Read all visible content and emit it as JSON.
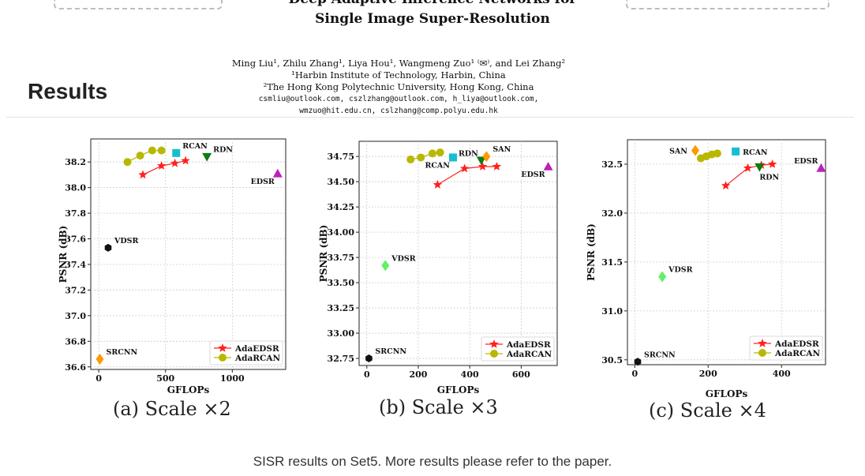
{
  "header": {
    "title_line1": "Deep Adaptive Inference Networks for",
    "title_line2": "Single Image Super-Resolution",
    "authors": "Ming Liu¹, Zhilu Zhang¹, Liya Hou¹, Wangmeng Zuo¹ ⁽✉⁾, and Lei Zhang²",
    "affiliation1": "¹Harbin Institute of Technology, Harbin, China",
    "affiliation2": "²The Hong Kong Polytechnic University, Hong Kong, China",
    "emails_line1": "csmliu@outlook.com, cszlzhang@outlook.com, h_liya@outlook.com,",
    "emails_line2": "wmzuo@hit.edu.cn, cslzhang@comp.polyu.edu.hk"
  },
  "section": {
    "title": "Results"
  },
  "caption": "SISR results on Set5. More results please refer to the paper.",
  "colors": {
    "adaedsr": "#ff2020",
    "adarcan": "#b8b800",
    "rcan": "#17becf",
    "rdn": "#117a11",
    "edsr": "#bb22bb",
    "san": "#ff9900",
    "vdsr": "#66ee66",
    "srcnn_a": "#ff9900",
    "black": "#111111"
  },
  "chart_data": [
    {
      "type": "scatter",
      "caption": "(a) Scale ×2",
      "xlabel": "GFLOPs",
      "ylabel": "PSNR (dB)",
      "xlim": [
        -60,
        1400
      ],
      "ylim": [
        36.58,
        38.38
      ],
      "xticks": [
        0,
        500,
        1000
      ],
      "yticks": [
        36.6,
        36.8,
        37.0,
        37.2,
        37.4,
        37.6,
        37.8,
        38.0,
        38.2
      ],
      "ytick_decimals": 1,
      "legend": "bottom-right",
      "legend_entries": [
        "AdaEDSR",
        "AdaRCAN"
      ],
      "series": [
        {
          "name": "AdaEDSR",
          "style": "star-line",
          "color": "#ff2020",
          "x": [
            330,
            470,
            570,
            650
          ],
          "y": [
            38.1,
            38.17,
            38.19,
            38.21
          ]
        },
        {
          "name": "AdaRCAN",
          "style": "circle-line",
          "color": "#b8b800",
          "x": [
            215,
            310,
            400,
            470
          ],
          "y": [
            38.2,
            38.25,
            38.29,
            38.29
          ]
        }
      ],
      "points": [
        {
          "label": "RCAN",
          "x": 580,
          "y": 38.27,
          "marker": "square",
          "color": "#17becf",
          "label_pos": "above-right"
        },
        {
          "label": "RDN",
          "x": 810,
          "y": 38.24,
          "marker": "triangle-down",
          "color": "#117a11",
          "label_pos": "above-right"
        },
        {
          "label": "EDSR",
          "x": 1340,
          "y": 38.11,
          "marker": "triangle-up",
          "color": "#bb22bb",
          "label_pos": "below-left"
        },
        {
          "label": "VDSR",
          "x": 70,
          "y": 37.53,
          "marker": "hexagon",
          "color": "#111111",
          "label_pos": "above-right"
        },
        {
          "label": "SRCNN",
          "x": 8,
          "y": 36.66,
          "marker": "diamond",
          "color": "#ff9900",
          "label_pos": "above-right"
        }
      ]
    },
    {
      "type": "scatter",
      "caption": "(b) Scale ×3",
      "xlabel": "GFLOPs",
      "ylabel": "PSNR (dB)",
      "xlim": [
        -30,
        740
      ],
      "ylim": [
        32.68,
        34.9
      ],
      "xticks": [
        0,
        200,
        400,
        600
      ],
      "yticks": [
        32.75,
        33.0,
        33.25,
        33.5,
        33.75,
        34.0,
        34.25,
        34.5,
        34.75
      ],
      "ytick_decimals": 2,
      "legend": "bottom-right",
      "legend_entries": [
        "AdaEDSR",
        "AdaRCAN"
      ],
      "series": [
        {
          "name": "AdaEDSR",
          "style": "star-line",
          "color": "#ff2020",
          "x": [
            275,
            380,
            450,
            505
          ],
          "y": [
            34.47,
            34.63,
            34.65,
            34.65
          ]
        },
        {
          "name": "AdaRCAN",
          "style": "circle-line",
          "color": "#b8b800",
          "x": [
            170,
            210,
            255,
            285
          ],
          "y": [
            34.72,
            34.74,
            34.78,
            34.79
          ]
        }
      ],
      "points": [
        {
          "label": "RCAN",
          "x": 335,
          "y": 34.74,
          "marker": "square",
          "color": "#17becf",
          "label_pos": "below-left"
        },
        {
          "label": "RDN",
          "x": 445,
          "y": 34.71,
          "marker": "triangle-down",
          "color": "#117a11",
          "label_pos": "above-left"
        },
        {
          "label": "SAN",
          "x": 465,
          "y": 34.75,
          "marker": "diamond",
          "color": "#ff9900",
          "label_pos": "above-right"
        },
        {
          "label": "EDSR",
          "x": 705,
          "y": 34.65,
          "marker": "triangle-up",
          "color": "#bb22bb",
          "label_pos": "below-left"
        },
        {
          "label": "VDSR",
          "x": 72,
          "y": 33.67,
          "marker": "diamond",
          "color": "#66ee66",
          "label_pos": "above-right"
        },
        {
          "label": "SRCNN",
          "x": 8,
          "y": 32.75,
          "marker": "hexagon",
          "color": "#111111",
          "label_pos": "above-right"
        }
      ]
    },
    {
      "type": "scatter",
      "caption": "(c) Scale ×4",
      "xlabel": "GFLOPs",
      "ylabel": "PSNR (dB)",
      "xlim": [
        -20,
        520
      ],
      "ylim": [
        30.45,
        32.75
      ],
      "xticks": [
        0,
        200,
        400
      ],
      "yticks": [
        30.5,
        31.0,
        31.5,
        32.0,
        32.5
      ],
      "ytick_decimals": 1,
      "legend": "bottom-right",
      "legend_entries": [
        "AdaEDSR",
        "AdaRCAN"
      ],
      "series": [
        {
          "name": "AdaEDSR",
          "style": "star-line",
          "color": "#ff2020",
          "x": [
            248,
            308,
            345,
            375
          ],
          "y": [
            32.28,
            32.46,
            32.49,
            32.5
          ]
        },
        {
          "name": "AdaRCAN",
          "style": "circle-line",
          "color": "#b8b800",
          "x": [
            180,
            195,
            210,
            225
          ],
          "y": [
            32.56,
            32.58,
            32.6,
            32.61
          ]
        }
      ],
      "points": [
        {
          "label": "SAN",
          "x": 165,
          "y": 32.64,
          "marker": "diamond",
          "color": "#ff9900",
          "label_pos": "left"
        },
        {
          "label": "RCAN",
          "x": 275,
          "y": 32.63,
          "marker": "square",
          "color": "#17becf",
          "label_pos": "right"
        },
        {
          "label": "RDN",
          "x": 340,
          "y": 32.47,
          "marker": "triangle-down",
          "color": "#117a11",
          "label_pos": "below-right"
        },
        {
          "label": "EDSR",
          "x": 508,
          "y": 32.46,
          "marker": "triangle-up",
          "color": "#bb22bb",
          "label_pos": "above-left"
        },
        {
          "label": "VDSR",
          "x": 75,
          "y": 31.35,
          "marker": "diamond",
          "color": "#66ee66",
          "label_pos": "above-right"
        },
        {
          "label": "SRCNN",
          "x": 8,
          "y": 30.48,
          "marker": "hexagon",
          "color": "#111111",
          "label_pos": "above-right"
        }
      ]
    }
  ]
}
